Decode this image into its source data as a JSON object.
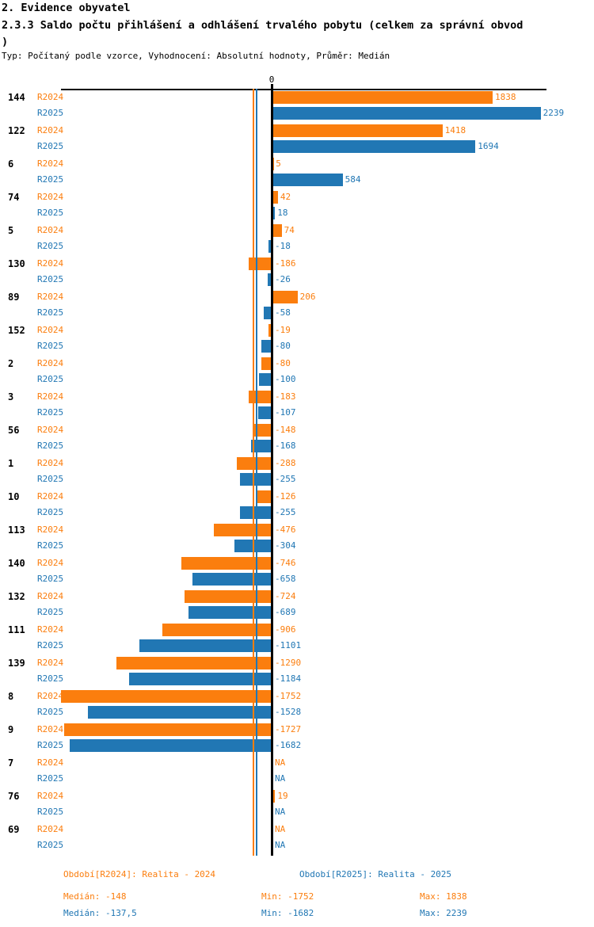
{
  "header": {
    "section_title": "2. Evidence obyvatel",
    "chart_title_line1": "2.3.3 Saldo počtu přihlášení a odhlášení trvalého pobytu (celkem za správní obvod",
    "chart_title_line2": ")",
    "meta": "Typ: Počítaný podle vzorce, Vyhodnocení: Absolutní hodnoty, Průměr: Medián"
  },
  "chart_data": {
    "type": "bar",
    "orientation": "horizontal",
    "title": "2.3.3 Saldo počtu přihlášení a odhlášení trvalého pobytu (celkem za správní obvod)",
    "zero_label": "0",
    "na_label": "NA",
    "xlim": [
      -1752,
      2239
    ],
    "axis_position": "top",
    "legend_position": "bottom",
    "categories": [
      "144",
      "122",
      "6",
      "74",
      "5",
      "130",
      "89",
      "152",
      "2",
      "3",
      "56",
      "1",
      "10",
      "113",
      "140",
      "132",
      "111",
      "139",
      "8",
      "9",
      "7",
      "76",
      "69"
    ],
    "series": [
      {
        "name": "R2024",
        "color": "#fb7e0e",
        "values": [
          1838,
          1418,
          5,
          42,
          74,
          -186,
          206,
          -19,
          -80,
          -183,
          -148,
          -288,
          -126,
          -476,
          -746,
          -724,
          -906,
          -1290,
          -1752,
          -1727,
          null,
          19,
          null
        ]
      },
      {
        "name": "R2025",
        "color": "#2177b4",
        "values": [
          2239,
          1694,
          584,
          18,
          -18,
          -26,
          -58,
          -80,
          -100,
          -107,
          -168,
          -255,
          -255,
          -304,
          -658,
          -689,
          -1101,
          -1184,
          -1528,
          -1682,
          null,
          null,
          null
        ]
      }
    ],
    "median_lines": [
      {
        "series": "R2024",
        "value": -148,
        "color": "#fb7e0e"
      },
      {
        "series": "R2025",
        "value": -137.5,
        "color": "#2177b4"
      }
    ]
  },
  "footer": {
    "legend": [
      {
        "label": "Období[R2024]: Realita - 2024",
        "color": "#fb7e0e"
      },
      {
        "label": "Období[R2025]: Realita - 2025",
        "color": "#2177b4"
      }
    ],
    "stats": [
      {
        "median": "Medián: -148",
        "min": "Min: -1752",
        "max": "Max: 1838",
        "color": "#fb7e0e"
      },
      {
        "median": "Medián: -137,5",
        "min": "Min: -1682",
        "max": "Max: 2239",
        "color": "#2177b4"
      }
    ]
  }
}
